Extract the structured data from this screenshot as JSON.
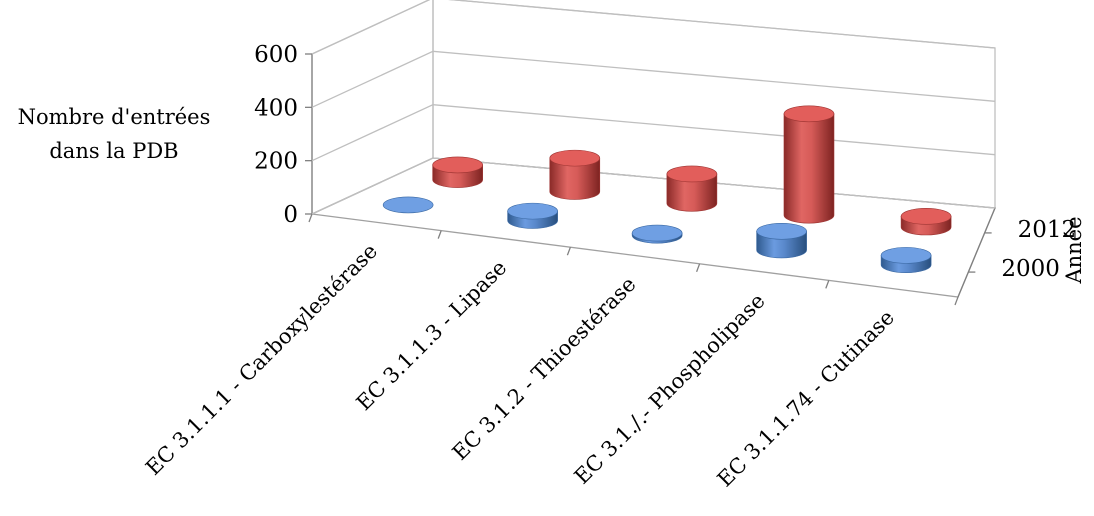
{
  "chart_data": {
    "type": "bar",
    "style": "3d-cylinder",
    "categories": [
      "EC 3.1.1.1 - Carboxylestérase",
      "EC 3.1.1.3 - Lipase",
      "EC 3.1.2 - Thioestérase",
      "EC 3.1./.- Phospholipase",
      "EC 3.1.1.74 - Cutinase"
    ],
    "series": [
      {
        "name": "2000",
        "color": "#4f81bd",
        "values": [
          3,
          35,
          8,
          70,
          35
        ]
      },
      {
        "name": "2012",
        "color": "#c0504d",
        "values": [
          55,
          125,
          110,
          380,
          40
        ]
      }
    ],
    "ylabel_lines": [
      "Nombre d'entrées",
      "dans la PDB"
    ],
    "zlabel": "Année",
    "yticks": [
      0,
      200,
      400,
      600
    ],
    "ylim": [
      0,
      600
    ],
    "grid": true,
    "legend": "none"
  }
}
